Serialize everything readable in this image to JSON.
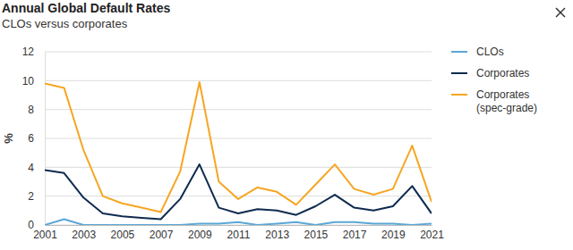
{
  "chart_data": {
    "type": "line",
    "title": "Annual Global Default Rates",
    "subtitle": "CLOs versus corporates",
    "y_label": "%",
    "x": [
      2001,
      2002,
      2003,
      2004,
      2005,
      2006,
      2007,
      2008,
      2009,
      2010,
      2011,
      2012,
      2013,
      2014,
      2015,
      2016,
      2017,
      2018,
      2019,
      2020,
      2021
    ],
    "series": [
      {
        "name": "CLOs",
        "color": "#5aa7d6",
        "values": [
          0.0,
          0.4,
          0.0,
          0.0,
          0.0,
          0.0,
          0.0,
          0.0,
          0.1,
          0.1,
          0.2,
          0.0,
          0.1,
          0.2,
          0.0,
          0.2,
          0.2,
          0.1,
          0.1,
          0.0,
          0.1
        ]
      },
      {
        "name": "Corporates",
        "color": "#0e2a4f",
        "values": [
          3.8,
          3.6,
          1.9,
          0.8,
          0.6,
          0.5,
          0.4,
          1.8,
          4.2,
          1.2,
          0.8,
          1.1,
          1.0,
          0.7,
          1.3,
          2.1,
          1.2,
          1.0,
          1.3,
          2.7,
          0.8
        ]
      },
      {
        "name": "Corporates (spec-grade)",
        "color": "#f6a623",
        "values": [
          9.8,
          9.5,
          5.2,
          2.0,
          1.5,
          1.2,
          0.9,
          3.7,
          9.9,
          3.0,
          1.8,
          2.6,
          2.3,
          1.4,
          2.8,
          4.2,
          2.5,
          2.1,
          2.5,
          5.5,
          1.6
        ]
      }
    ],
    "xlim": [
      2001,
      2021
    ],
    "xticks": [
      2001,
      2003,
      2005,
      2007,
      2009,
      2011,
      2013,
      2015,
      2017,
      2019,
      2021
    ],
    "ylim": [
      0,
      12
    ],
    "yticks": [
      0,
      2,
      4,
      6,
      8,
      10,
      12
    ],
    "grid": true,
    "legend": "right"
  }
}
